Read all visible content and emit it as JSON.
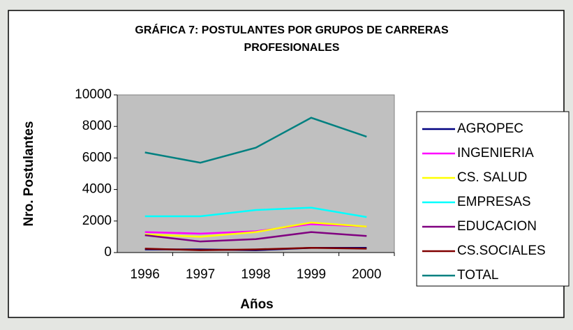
{
  "chart_data": {
    "type": "line",
    "title": [
      "GRÁFICA 7: POSTULANTES POR GRUPOS DE CARRERAS",
      "PROFESIONALES"
    ],
    "x_label": "Años",
    "y_label": "Nro. Postulantes",
    "categories": [
      "1996",
      "1997",
      "1998",
      "1999",
      "2000"
    ],
    "ylim": [
      0,
      10000
    ],
    "yticks": [
      0,
      2000,
      4000,
      6000,
      8000,
      10000
    ],
    "grid": false,
    "legend": "right",
    "plot_background": "#c0c0c0",
    "series": [
      {
        "name": "AGROPEC",
        "color": "#000080",
        "values": [
          200,
          200,
          150,
          300,
          300
        ]
      },
      {
        "name": "INGENIERIA",
        "color": "#ff00ff",
        "values": [
          1300,
          1200,
          1350,
          1800,
          1650
        ]
      },
      {
        "name": "CS. SALUD",
        "color": "#ffff00",
        "values": [
          1150,
          1000,
          1300,
          1900,
          1650
        ]
      },
      {
        "name": "EMPRESAS",
        "color": "#00ffff",
        "values": [
          2300,
          2300,
          2700,
          2850,
          2250
        ]
      },
      {
        "name": "EDUCACION",
        "color": "#800080",
        "values": [
          1100,
          700,
          850,
          1300,
          1050
        ]
      },
      {
        "name": "CS.SOCIALES",
        "color": "#800000",
        "values": [
          250,
          150,
          200,
          300,
          250
        ]
      },
      {
        "name": "TOTAL",
        "color": "#008080",
        "values": [
          6350,
          5700,
          6650,
          8550,
          7350
        ]
      }
    ]
  }
}
